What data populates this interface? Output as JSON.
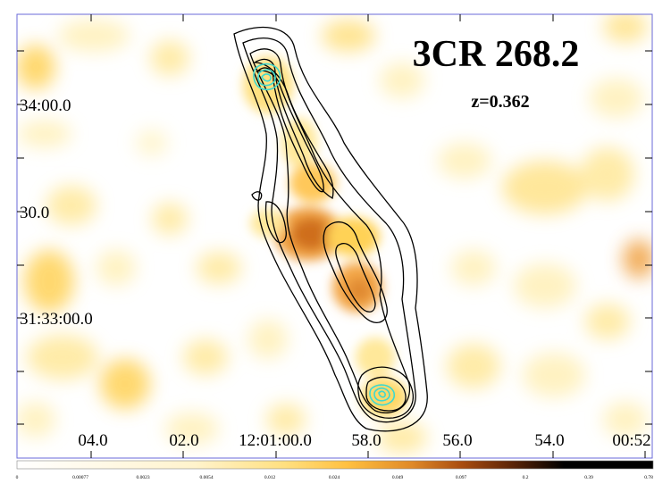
{
  "figure": {
    "title": "3CR 268.2",
    "redshift": "z=0.362",
    "colors": {
      "frame": "#6a6ad8",
      "contour": "#000000",
      "xray_contour": "#3fd8cf",
      "background": "#ffffff"
    }
  },
  "axes": {
    "dec_ticks": [
      "34:00.0",
      "30.0",
      "31:33:00.0"
    ],
    "ra_ticks": [
      "04.0",
      "02.0",
      "12:01:00.0",
      "58.0",
      "56.0",
      "54.0",
      "00:52"
    ]
  },
  "colorbar": {
    "tick_labels": [
      "0",
      "0.00077",
      "0.0023",
      "0.0054",
      "0.012",
      "0.024",
      "0.049",
      "0.097",
      "0.2",
      "0.39",
      "0.78"
    ],
    "stops": [
      "#ffffff",
      "#fff6d6",
      "#ffe58a",
      "#ffc84a",
      "#f0a030",
      "#c86818",
      "#8a3c0c",
      "#4a1e06",
      "#000000"
    ]
  }
}
